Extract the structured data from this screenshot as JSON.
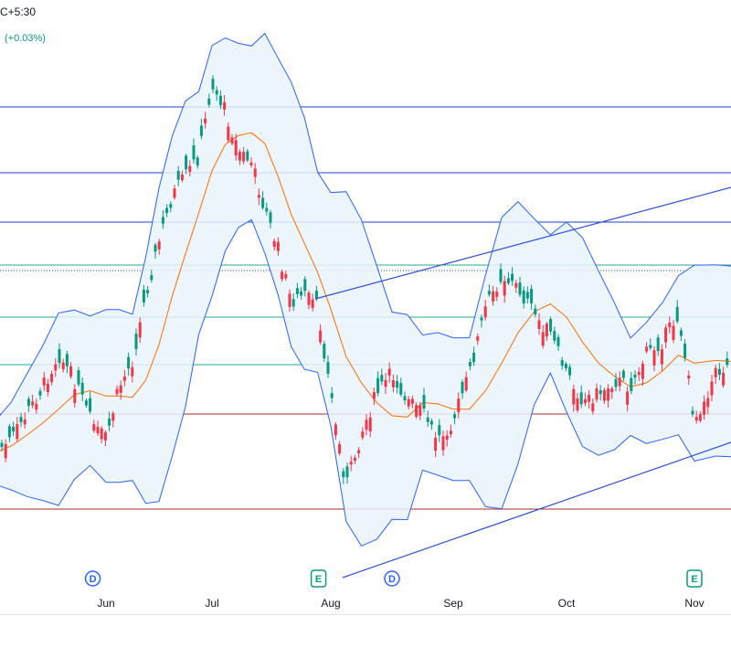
{
  "header": {
    "timezone_text": "C+5:30",
    "change_text": "(+0.03%)"
  },
  "colors": {
    "up": "#089981",
    "down": "#f23645",
    "band_line": "#2962ff",
    "band_fill": "#e9f2fb",
    "basis": "#ff6d00",
    "hline_blue": "#1e40c8",
    "hline_teal": "#22ab94",
    "hline_red": "#a52a2a",
    "trend": "#2e4fd6",
    "axis_text": "#131722",
    "grid": "#f0f3fa"
  },
  "markers": [
    {
      "type": "dividend",
      "label": "D",
      "at_month": "May",
      "fraction": 0.55
    },
    {
      "type": "earnings",
      "label": "E",
      "at_month": "Aug",
      "fraction": -0.1
    },
    {
      "type": "dividend",
      "label": "D",
      "at_month": "Aug",
      "fraction": 0.5
    },
    {
      "type": "earnings",
      "label": "E",
      "at_month": "Nov",
      "fraction": -0.05
    }
  ],
  "chart_data": {
    "type": "candlestick",
    "x_ticks": [
      "Jun",
      "Jul",
      "Aug",
      "Sep",
      "Oct",
      "Nov"
    ],
    "indicators": [
      "Bollinger Bands (upper, basis, lower)"
    ],
    "horizontal_levels": [
      {
        "color": "blue",
        "dotted": false
      },
      {
        "color": "blue",
        "dotted": false
      },
      {
        "color": "blue",
        "dotted": false
      },
      {
        "color": "teal",
        "dotted": false
      },
      {
        "color": "blue",
        "dotted": true
      },
      {
        "color": "teal",
        "dotted": false
      },
      {
        "color": "teal",
        "dotted": false
      },
      {
        "color": "red",
        "dotted": false
      },
      {
        "color": "red",
        "dotted": false
      }
    ],
    "close_series": [
      {
        "t": "May",
        "v": 0.38
      },
      {
        "t": "May",
        "v": 0.42
      },
      {
        "t": "May",
        "v": 0.5
      },
      {
        "t": "May",
        "v": 0.58
      },
      {
        "t": "May",
        "v": 0.68
      },
      {
        "t": "May",
        "v": 0.6
      },
      {
        "t": "May",
        "v": 0.48
      },
      {
        "t": "Jun",
        "v": 0.42
      },
      {
        "t": "Jun",
        "v": 0.58
      },
      {
        "t": "Jun",
        "v": 0.66
      },
      {
        "t": "Jun",
        "v": 0.86
      },
      {
        "t": "Jun",
        "v": 1.02
      },
      {
        "t": "Jun",
        "v": 1.16
      },
      {
        "t": "Jun",
        "v": 1.22
      },
      {
        "t": "Jun",
        "v": 1.28
      },
      {
        "t": "Jul",
        "v": 1.5
      },
      {
        "t": "Jul",
        "v": 1.42
      },
      {
        "t": "Jul",
        "v": 1.3
      },
      {
        "t": "Jul",
        "v": 1.26
      },
      {
        "t": "Jul",
        "v": 1.12
      },
      {
        "t": "Jul",
        "v": 1.0
      },
      {
        "t": "Jul",
        "v": 0.84
      },
      {
        "t": "Jul",
        "v": 0.86
      },
      {
        "t": "Jul",
        "v": 0.82
      },
      {
        "t": "Aug",
        "v": 0.56
      },
      {
        "t": "Aug",
        "v": 0.28
      },
      {
        "t": "Aug",
        "v": 0.44
      },
      {
        "t": "Aug",
        "v": 0.56
      },
      {
        "t": "Aug",
        "v": 0.62
      },
      {
        "t": "Aug",
        "v": 0.54
      },
      {
        "t": "Aug",
        "v": 0.5
      },
      {
        "t": "Aug",
        "v": 0.42
      },
      {
        "t": "Sep",
        "v": 0.48
      },
      {
        "t": "Sep",
        "v": 0.62
      },
      {
        "t": "Sep",
        "v": 0.82
      },
      {
        "t": "Sep",
        "v": 0.92
      },
      {
        "t": "Sep",
        "v": 0.88
      },
      {
        "t": "Sep",
        "v": 0.8
      },
      {
        "t": "Sep",
        "v": 0.74
      },
      {
        "t": "Oct",
        "v": 0.62
      },
      {
        "t": "Oct",
        "v": 0.54
      },
      {
        "t": "Oct",
        "v": 0.56
      },
      {
        "t": "Oct",
        "v": 0.6
      },
      {
        "t": "Oct",
        "v": 0.58
      },
      {
        "t": "Oct",
        "v": 0.68
      },
      {
        "t": "Oct",
        "v": 0.72
      },
      {
        "t": "Oct",
        "v": 0.8
      },
      {
        "t": "Nov",
        "v": 0.48
      },
      {
        "t": "Nov",
        "v": 0.62
      },
      {
        "t": "Nov",
        "v": 0.66
      }
    ],
    "legend": null,
    "grid": false
  }
}
